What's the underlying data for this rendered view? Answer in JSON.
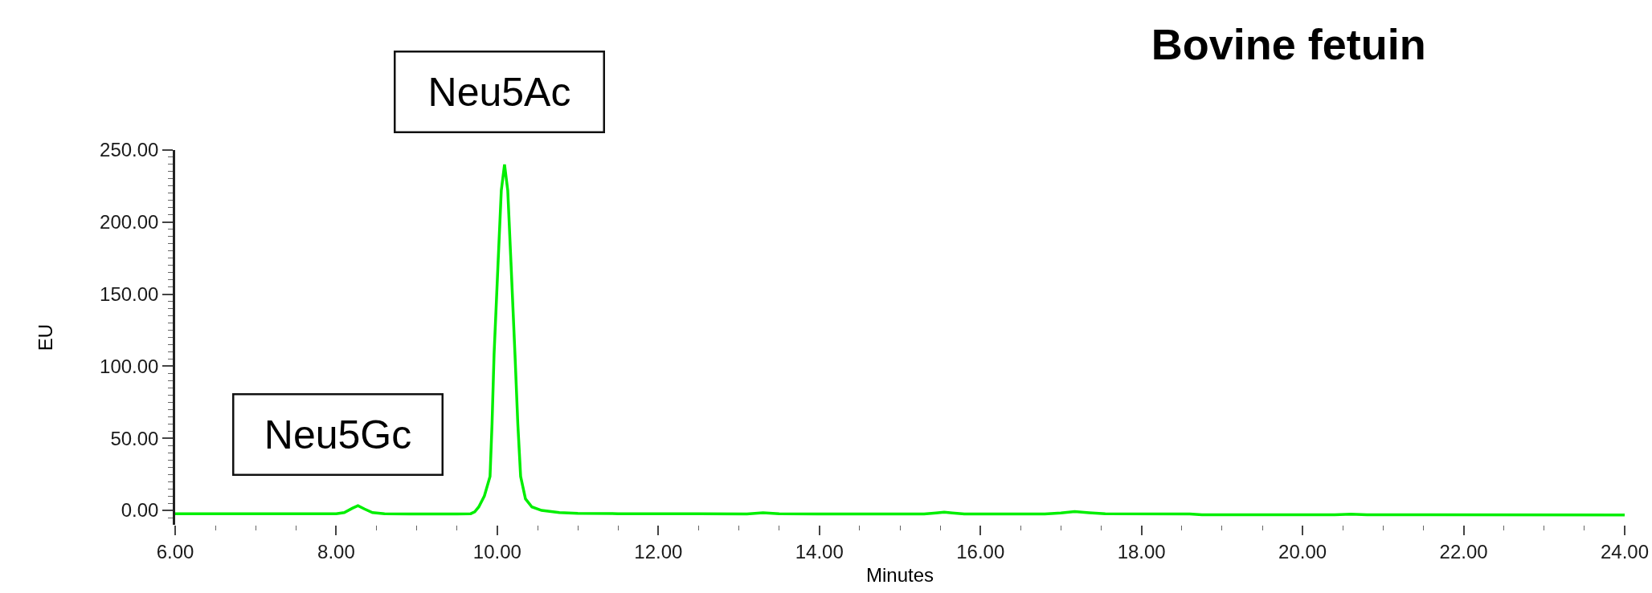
{
  "chart_data": {
    "type": "line",
    "title": "Bovine fetuin",
    "xlabel": "Minutes",
    "ylabel": "EU",
    "annotations": [
      {
        "text": "Neu5Gc",
        "x": 8.27,
        "y": 3.3
      },
      {
        "text": "Neu5Ac",
        "x": 10.09,
        "y": 240
      }
    ],
    "color": "#00ee00",
    "x": [
      6.0,
      7.0,
      8.0,
      8.1,
      8.2,
      8.27,
      8.35,
      8.45,
      8.6,
      9.0,
      9.5,
      9.67,
      9.72,
      9.77,
      9.84,
      9.91,
      9.935,
      9.96,
      9.985,
      10.01,
      10.05,
      10.09,
      10.13,
      10.17,
      10.195,
      10.22,
      10.255,
      10.29,
      10.35,
      10.43,
      10.55,
      10.77,
      11.0,
      11.5,
      12.5,
      13.1,
      13.3,
      13.5,
      15.3,
      15.45,
      15.55,
      15.65,
      15.8,
      16.8,
      17.0,
      17.17,
      17.35,
      17.55,
      18.6,
      18.75,
      20.4,
      20.6,
      20.8,
      24.0
    ],
    "values": [
      -2.4,
      -2.4,
      -2.4,
      -1.5,
      1.5,
      3.3,
      1.0,
      -1.5,
      -2.4,
      -2.5,
      -2.5,
      -2.3,
      -1.0,
      2.4,
      10,
      23.6,
      60,
      108,
      140,
      172,
      222,
      240,
      222,
      172,
      140,
      108,
      60,
      23.6,
      8,
      2.4,
      0,
      -1.5,
      -2.0,
      -2.3,
      -2.4,
      -2.5,
      -1.6,
      -2.4,
      -2.5,
      -1.8,
      -1.3,
      -1.8,
      -2.5,
      -2.5,
      -1.8,
      -0.8,
      -1.6,
      -2.4,
      -2.5,
      -3.0,
      -3.0,
      -2.6,
      -3.0,
      -3.2
    ],
    "xlim": [
      6,
      24
    ],
    "xticks": [
      {
        "value": 6,
        "label": "6.00"
      },
      {
        "value": 6.5,
        "label": null
      },
      {
        "value": 7,
        "label": null
      },
      {
        "value": 7.5,
        "label": null
      },
      {
        "value": 8,
        "label": "8.00"
      },
      {
        "value": 8.5,
        "label": null
      },
      {
        "value": 9,
        "label": null
      },
      {
        "value": 9.5,
        "label": null
      },
      {
        "value": 10,
        "label": "10.00"
      },
      {
        "value": 10.5,
        "label": null
      },
      {
        "value": 11,
        "label": null
      },
      {
        "value": 11.5,
        "label": null
      },
      {
        "value": 12,
        "label": "12.00"
      },
      {
        "value": 12.5,
        "label": null
      },
      {
        "value": 13,
        "label": null
      },
      {
        "value": 13.5,
        "label": null
      },
      {
        "value": 14,
        "label": "14.00"
      },
      {
        "value": 14.5,
        "label": null
      },
      {
        "value": 15,
        "label": null
      },
      {
        "value": 15.5,
        "label": null
      },
      {
        "value": 16,
        "label": "16.00"
      },
      {
        "value": 16.5,
        "label": null
      },
      {
        "value": 17,
        "label": null
      },
      {
        "value": 17.5,
        "label": null
      },
      {
        "value": 18,
        "label": "18.00"
      },
      {
        "value": 18.5,
        "label": null
      },
      {
        "value": 19,
        "label": null
      },
      {
        "value": 19.5,
        "label": null
      },
      {
        "value": 20,
        "label": "20.00"
      },
      {
        "value": 20.5,
        "label": null
      },
      {
        "value": 21,
        "label": null
      },
      {
        "value": 21.5,
        "label": null
      },
      {
        "value": 22,
        "label": "22.00"
      },
      {
        "value": 22.5,
        "label": null
      },
      {
        "value": 23,
        "label": null
      },
      {
        "value": 23.5,
        "label": null
      },
      {
        "value": 24,
        "label": "24.00"
      }
    ],
    "ylim": [
      -10,
      250
    ],
    "yticks": [
      {
        "value": -5,
        "label": null
      },
      {
        "value": 0,
        "label": "0.00"
      },
      {
        "value": 5,
        "label": null
      },
      {
        "value": 10,
        "label": null
      },
      {
        "value": 15,
        "label": null
      },
      {
        "value": 20,
        "label": null
      },
      {
        "value": 25,
        "label": null
      },
      {
        "value": 30,
        "label": null
      },
      {
        "value": 35,
        "label": null
      },
      {
        "value": 40,
        "label": null
      },
      {
        "value": 45,
        "label": null
      },
      {
        "value": 50,
        "label": "50.00"
      },
      {
        "value": 55,
        "label": null
      },
      {
        "value": 60,
        "label": null
      },
      {
        "value": 65,
        "label": null
      },
      {
        "value": 70,
        "label": null
      },
      {
        "value": 75,
        "label": null
      },
      {
        "value": 80,
        "label": null
      },
      {
        "value": 85,
        "label": null
      },
      {
        "value": 90,
        "label": null
      },
      {
        "value": 95,
        "label": null
      },
      {
        "value": 100,
        "label": "100.00"
      },
      {
        "value": 105,
        "label": null
      },
      {
        "value": 110,
        "label": null
      },
      {
        "value": 115,
        "label": null
      },
      {
        "value": 120,
        "label": null
      },
      {
        "value": 125,
        "label": null
      },
      {
        "value": 130,
        "label": null
      },
      {
        "value": 135,
        "label": null
      },
      {
        "value": 140,
        "label": null
      },
      {
        "value": 145,
        "label": null
      },
      {
        "value": 150,
        "label": "150.00"
      },
      {
        "value": 155,
        "label": null
      },
      {
        "value": 160,
        "label": null
      },
      {
        "value": 165,
        "label": null
      },
      {
        "value": 170,
        "label": null
      },
      {
        "value": 175,
        "label": null
      },
      {
        "value": 180,
        "label": null
      },
      {
        "value": 185,
        "label": null
      },
      {
        "value": 190,
        "label": null
      },
      {
        "value": 195,
        "label": null
      },
      {
        "value": 200,
        "label": "200.00"
      },
      {
        "value": 205,
        "label": null
      },
      {
        "value": 210,
        "label": null
      },
      {
        "value": 215,
        "label": null
      },
      {
        "value": 220,
        "label": null
      },
      {
        "value": 225,
        "label": null
      },
      {
        "value": 230,
        "label": null
      },
      {
        "value": 235,
        "label": null
      },
      {
        "value": 240,
        "label": null
      },
      {
        "value": 245,
        "label": null
      },
      {
        "value": 250,
        "label": "250.00"
      }
    ]
  }
}
